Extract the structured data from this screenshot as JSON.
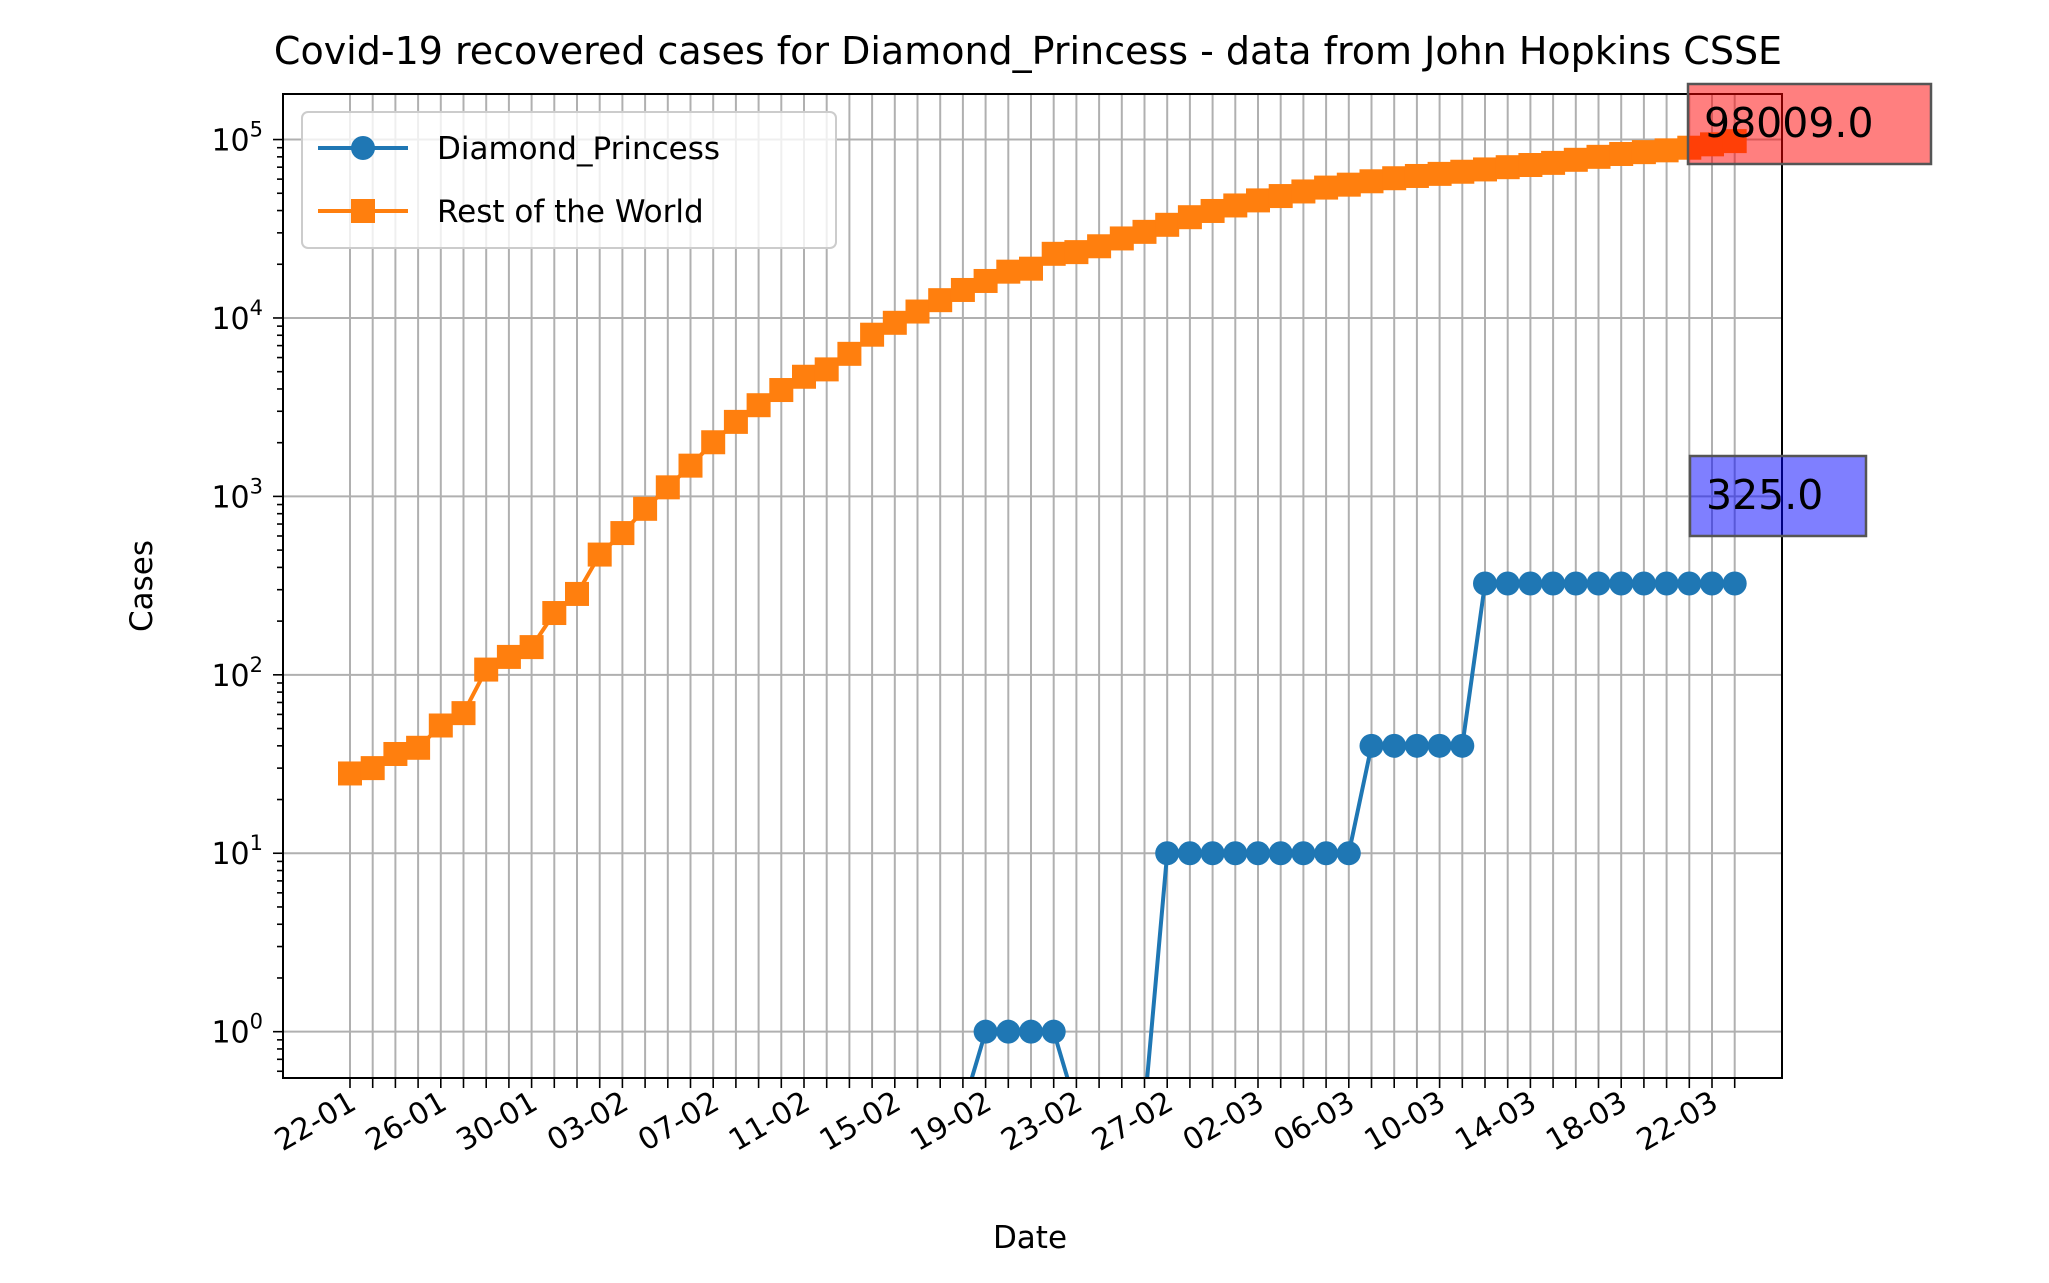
{
  "chart_data": {
    "type": "line",
    "title": "Covid-19 recovered cases for Diamond_Princess - data from John Hopkins CSSE",
    "xlabel": "Date",
    "ylabel": "Cases",
    "yscale": "log",
    "ylim": [
      0.55,
      180000
    ],
    "grid": true,
    "legend_position": "upper-left",
    "x_tick_labels": [
      "22-01",
      "26-01",
      "30-01",
      "03-02",
      "07-02",
      "11-02",
      "15-02",
      "19-02",
      "23-02",
      "27-02",
      "02-03",
      "06-03",
      "10-03",
      "14-03",
      "18-03",
      "22-03"
    ],
    "y_tick_labels": [
      {
        "value": 1,
        "base": "10",
        "exp": "0"
      },
      {
        "value": 10,
        "base": "10",
        "exp": "1"
      },
      {
        "value": 100,
        "base": "10",
        "exp": "2"
      },
      {
        "value": 1000,
        "base": "10",
        "exp": "3"
      },
      {
        "value": 10000,
        "base": "10",
        "exp": "4"
      },
      {
        "value": 100000,
        "base": "10",
        "exp": "5"
      }
    ],
    "x": [
      "22-01",
      "23-01",
      "24-01",
      "25-01",
      "26-01",
      "27-01",
      "28-01",
      "29-01",
      "30-01",
      "31-01",
      "01-02",
      "02-02",
      "03-02",
      "04-02",
      "05-02",
      "06-02",
      "07-02",
      "08-02",
      "09-02",
      "10-02",
      "11-02",
      "12-02",
      "13-02",
      "14-02",
      "15-02",
      "16-02",
      "17-02",
      "18-02",
      "19-02",
      "20-02",
      "21-02",
      "22-02",
      "23-02",
      "24-02",
      "25-02",
      "26-02",
      "27-02",
      "28-02",
      "29-02",
      "01-03",
      "02-03",
      "03-03",
      "04-03",
      "05-03",
      "06-03",
      "07-03",
      "08-03",
      "09-03",
      "10-03",
      "11-03",
      "12-03",
      "13-03",
      "14-03",
      "15-03",
      "16-03",
      "17-03",
      "18-03",
      "19-03",
      "20-03",
      "21-03",
      "22-03",
      "23-03"
    ],
    "series": [
      {
        "name": "Diamond_Princess",
        "color": "#1f77b4",
        "marker": "circle",
        "values": [
          0,
          0,
          0,
          0,
          0,
          0,
          0,
          0,
          0,
          0,
          0,
          0,
          0,
          0,
          0,
          0,
          0,
          0,
          0,
          0,
          0,
          0,
          0,
          0,
          0,
          0,
          0,
          0,
          1,
          1,
          1,
          1,
          0,
          0,
          0,
          0,
          10,
          10,
          10,
          10,
          10,
          10,
          10,
          10,
          10,
          40,
          40,
          40,
          40,
          40,
          325,
          325,
          325,
          325,
          325,
          325,
          325,
          325,
          325,
          325,
          325,
          325
        ]
      },
      {
        "name": "Rest of the World",
        "color": "#ff7f0e",
        "marker": "square",
        "values": [
          28,
          30,
          36,
          39,
          52,
          61,
          107,
          126,
          143,
          222,
          284,
          472,
          623,
          852,
          1124,
          1487,
          2011,
          2616,
          3244,
          3946,
          4683,
          5150,
          6295,
          8058,
          9395,
          10865,
          12583,
          14352,
          16121,
          18177,
          18890,
          22886,
          23394,
          25227,
          27905,
          30384,
          33277,
          36711,
          39782,
          42716,
          45602,
          48229,
          51170,
          53796,
          55865,
          58358,
          60694,
          62494,
          64206,
          66000,
          68000,
          70000,
          72000,
          74000,
          77000,
          80000,
          83000,
          85000,
          87000,
          90000,
          94000,
          98009
        ]
      }
    ],
    "annotations": [
      {
        "text": "98009.0",
        "value": 98009.0,
        "color": "#ff0000"
      },
      {
        "text": "325.0",
        "value": 325.0,
        "color": "#0000ff"
      }
    ]
  }
}
